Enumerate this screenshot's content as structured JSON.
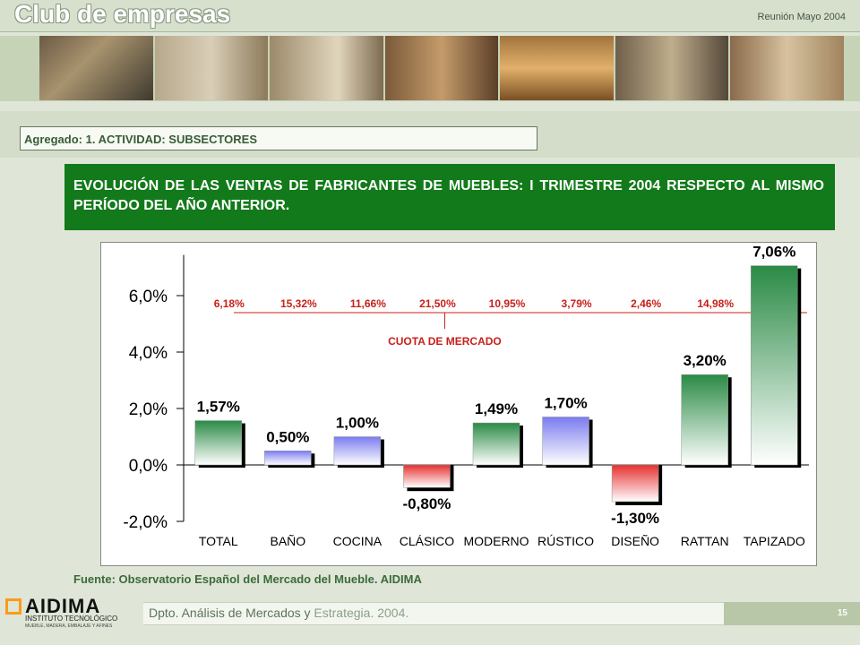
{
  "header": {
    "title": "Club de empresas",
    "meeting": "Reunión Mayo 2004"
  },
  "section": {
    "label": "Agregado: 1. ACTIVIDAD: SUBSECTORES"
  },
  "headline": "EVOLUCIÓN DE LAS VENTAS DE FABRICANTES DE MUEBLES: I TRIMESTRE 2004 RESPECTO AL MISMO PERÍODO DEL AÑO ANTERIOR.",
  "colors": {
    "headline_bg": "#127a1a",
    "green_bar": "#2a8a45",
    "blue_bar": "#7b7bf0",
    "red_bar": "#e63030",
    "share_text": "#c8201a"
  },
  "chart_data": {
    "type": "bar",
    "categories": [
      "TOTAL",
      "BAÑO",
      "COCINA",
      "CLÁSICO",
      "MODERNO",
      "RÚSTICO",
      "DISEÑO",
      "RATTAN",
      "TAPIZADO"
    ],
    "values": [
      1.57,
      0.5,
      1.0,
      -0.8,
      1.49,
      1.7,
      -1.3,
      3.2,
      7.06
    ],
    "value_labels": [
      "1,57%",
      "0,50%",
      "1,00%",
      "-0,80%",
      "1,49%",
      "1,70%",
      "-1,30%",
      "3,20%",
      "7,06%"
    ],
    "bar_colors": [
      "green",
      "blue",
      "blue",
      "red",
      "green",
      "blue",
      "red",
      "green",
      "green"
    ],
    "market_share_label": "CUOTA DE MERCADO",
    "market_share": [
      "6,18%",
      "15,32%",
      "11,66%",
      "21,50%",
      "10,95%",
      "3,79%",
      "2,46%",
      "14,98%"
    ],
    "yticks": [
      6.0,
      4.0,
      2.0,
      0.0,
      -2.0
    ],
    "ytick_labels": [
      "6,0%",
      "4,0%",
      "2,0%",
      "0,0%",
      "-2,0%"
    ],
    "ylim": [
      -2.0,
      7.0
    ],
    "xlabel": "",
    "ylabel": "",
    "title": ""
  },
  "source": "Fuente: Observatorio Español del Mercado del Mueble. AIDIMA",
  "footer": {
    "dept_part1": "Dpto. Análisis de Mercados y ",
    "dept_part2": "Estrategia. 2004.",
    "page": "15"
  },
  "logo": {
    "name": "AIDIMA",
    "line1": "INSTITUTO TECNOLÓGICO",
    "line2": "MUEBLE, MADERA, EMBALAJE Y AFINES"
  }
}
